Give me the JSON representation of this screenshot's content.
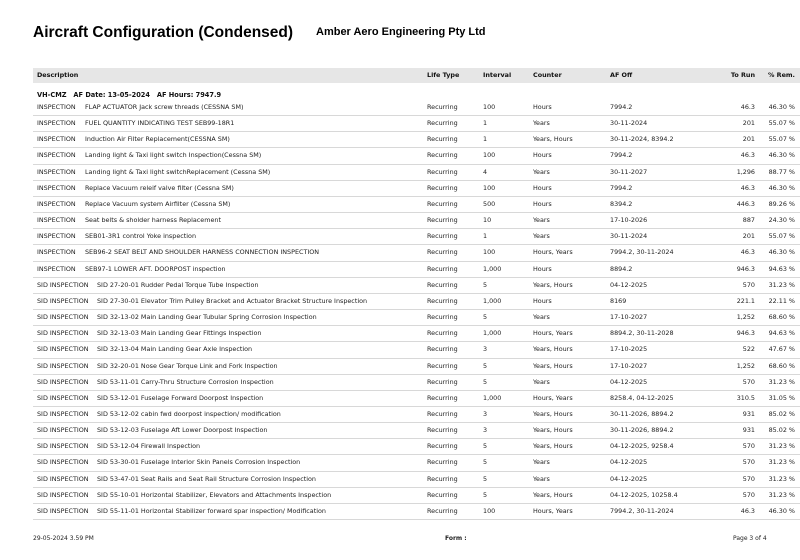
{
  "header": {
    "title": "Aircraft Configuration (Condensed)",
    "company": "Amber Aero Engineering Pty Ltd"
  },
  "columns": {
    "description": "Description",
    "life_type": "Life Type",
    "interval": "Interval",
    "counter": "Counter",
    "af_off": "AF Off",
    "to_run": "To Run",
    "pct_rem": "% Rem."
  },
  "group": {
    "label": "VH-CMZ   AF Date: 13-05-2024   AF Hours: 7947.9"
  },
  "rows": [
    {
      "type": "INSPECTION",
      "desc": "FLAP ACTUATOR Jack screw threads (CESSNA SM)",
      "life": "Recurring",
      "interval": "100",
      "counter": "Hours",
      "af_off": "7994.2",
      "to_run": "46.3",
      "rem": "46.30 %"
    },
    {
      "type": "INSPECTION",
      "desc": "FUEL QUANTITY INDICATING TEST SEB99-18R1",
      "life": "Recurring",
      "interval": "1",
      "counter": "Years",
      "af_off": "30-11-2024",
      "to_run": "201",
      "rem": "55.07 %"
    },
    {
      "type": "INSPECTION",
      "desc": "Induction Air Filter Replacement(CESSNA SM)",
      "life": "Recurring",
      "interval": "1",
      "counter": "Years, Hours",
      "af_off": "30-11-2024, 8394.2",
      "to_run": "201",
      "rem": "55.07 %"
    },
    {
      "type": "INSPECTION",
      "desc": "Landing light & Taxi light switch Inspection(Cessna SM)",
      "life": "Recurring",
      "interval": "100",
      "counter": "Hours",
      "af_off": "7994.2",
      "to_run": "46.3",
      "rem": "46.30 %"
    },
    {
      "type": "INSPECTION",
      "desc": "Landing light & Taxi light switchReplacement (Cessna SM)",
      "life": "Recurring",
      "interval": "4",
      "counter": "Years",
      "af_off": "30-11-2027",
      "to_run": "1,296",
      "rem": "88.77 %"
    },
    {
      "type": "INSPECTION",
      "desc": "Replace Vacuum releif valve filter (Cessna SM)",
      "life": "Recurring",
      "interval": "100",
      "counter": "Hours",
      "af_off": "7994.2",
      "to_run": "46.3",
      "rem": "46.30 %"
    },
    {
      "type": "INSPECTION",
      "desc": "Replace Vacuum system  Airfilter (Cessna SM)",
      "life": "Recurring",
      "interval": "500",
      "counter": "Hours",
      "af_off": "8394.2",
      "to_run": "446.3",
      "rem": "89.26 %"
    },
    {
      "type": "INSPECTION",
      "desc": "Seat belts & sholder harness Replacement",
      "life": "Recurring",
      "interval": "10",
      "counter": "Years",
      "af_off": "17-10-2026",
      "to_run": "887",
      "rem": "24.30 %"
    },
    {
      "type": "INSPECTION",
      "desc": "SEB01-3R1 control Yoke inspection",
      "life": "Recurring",
      "interval": "1",
      "counter": "Years",
      "af_off": "30-11-2024",
      "to_run": "201",
      "rem": "55.07 %"
    },
    {
      "type": "INSPECTION",
      "desc": "SEB96-2 SEAT BELT AND SHOULDER HARNESS CONNECTION INSPECTION",
      "life": "Recurring",
      "interval": "100",
      "counter": "Hours, Years",
      "af_off": "7994.2, 30-11-2024",
      "to_run": "46.3",
      "rem": "46.30 %"
    },
    {
      "type": "INSPECTION",
      "desc": "SEB97-1 LOWER AFT. DOORPOST inspection",
      "life": "Recurring",
      "interval": "1,000",
      "counter": "Hours",
      "af_off": "8894.2",
      "to_run": "946.3",
      "rem": "94.63 %"
    },
    {
      "type": "SID INSPECTION",
      "desc": "SID 27-20-01 Rudder Pedal Torque Tube Inspection",
      "life": "Recurring",
      "interval": "5",
      "counter": "Years, Hours",
      "af_off": "04-12-2025",
      "to_run": "570",
      "rem": "31.23 %"
    },
    {
      "type": "SID INSPECTION",
      "desc": "SID 27-30-01 Elevator Trim Pulley Bracket and Actuator Bracket Structure Inspection",
      "life": "Recurring",
      "interval": "1,000",
      "counter": "Hours",
      "af_off": "8169",
      "to_run": "221.1",
      "rem": "22.11 %"
    },
    {
      "type": "SID INSPECTION",
      "desc": "SID 32-13-02 Main Landing Gear Tubular Spring Corrosion Inspection",
      "life": "Recurring",
      "interval": "5",
      "counter": "Years",
      "af_off": "17-10-2027",
      "to_run": "1,252",
      "rem": "68.60 %"
    },
    {
      "type": "SID INSPECTION",
      "desc": "SID 32-13-03 Main Landing Gear Fittings Inspection",
      "life": "Recurring",
      "interval": "1,000",
      "counter": "Hours, Years",
      "af_off": "8894.2, 30-11-2028",
      "to_run": "946.3",
      "rem": "94.63 %"
    },
    {
      "type": "SID INSPECTION",
      "desc": "SID 32-13-04 Main Landing Gear Axle Inspection",
      "life": "Recurring",
      "interval": "3",
      "counter": "Years, Hours",
      "af_off": "17-10-2025",
      "to_run": "522",
      "rem": "47.67 %"
    },
    {
      "type": "SID INSPECTION",
      "desc": "SID 32-20-01 Nose Gear Torque Link and Fork Inspection",
      "life": "Recurring",
      "interval": "5",
      "counter": "Years, Hours",
      "af_off": "17-10-2027",
      "to_run": "1,252",
      "rem": "68.60 %"
    },
    {
      "type": "SID INSPECTION",
      "desc": "SID 53-11-01 Carry-Thru Structure Corrosion Inspection",
      "life": "Recurring",
      "interval": "5",
      "counter": "Years",
      "af_off": "04-12-2025",
      "to_run": "570",
      "rem": "31.23 %"
    },
    {
      "type": "SID INSPECTION",
      "desc": "SID 53-12-01 Fuselage Forward Doorpost Inspection",
      "life": "Recurring",
      "interval": "1,000",
      "counter": "Hours, Years",
      "af_off": "8258.4, 04-12-2025",
      "to_run": "310.5",
      "rem": "31.05 %"
    },
    {
      "type": "SID INSPECTION",
      "desc": "SID 53-12-02 cabin fwd doorpost inspection/ modification",
      "life": "Recurring",
      "interval": "3",
      "counter": "Years, Hours",
      "af_off": "30-11-2026, 8894.2",
      "to_run": "931",
      "rem": "85.02 %"
    },
    {
      "type": "SID INSPECTION",
      "desc": "SID 53-12-03 Fuselage Aft Lower Doorpost Inspection",
      "life": "Recurring",
      "interval": "3",
      "counter": "Years, Hours",
      "af_off": "30-11-2026, 8894.2",
      "to_run": "931",
      "rem": "85.02 %"
    },
    {
      "type": "SID INSPECTION",
      "desc": "SID 53-12-04 Firewall Inspection",
      "life": "Recurring",
      "interval": "5",
      "counter": "Years, Hours",
      "af_off": "04-12-2025, 9258.4",
      "to_run": "570",
      "rem": "31.23 %"
    },
    {
      "type": "SID INSPECTION",
      "desc": "SID 53-30-01 Fuselage Interior Skin Panels Corrosion Inspection",
      "life": "Recurring",
      "interval": "5",
      "counter": "Years",
      "af_off": "04-12-2025",
      "to_run": "570",
      "rem": "31.23 %"
    },
    {
      "type": "SID INSPECTION",
      "desc": "SID 53-47-01 Seat Rails and Seat Rail Structure Corrosion Inspection",
      "life": "Recurring",
      "interval": "5",
      "counter": "Years",
      "af_off": "04-12-2025",
      "to_run": "570",
      "rem": "31.23 %"
    },
    {
      "type": "SID INSPECTION",
      "desc": "SID 55-10-01 Horizontal Stabilizer, Elevators and Attachments Inspection",
      "life": "Recurring",
      "interval": "5",
      "counter": "Years, Hours",
      "af_off": "04-12-2025, 10258.4",
      "to_run": "570",
      "rem": "31.23 %"
    },
    {
      "type": "SID INSPECTION",
      "desc": "SID 55-11-01 Horizontal Stabilizer forward spar inspection/ Modification",
      "life": "Recurring",
      "interval": "100",
      "counter": "Hours, Years",
      "af_off": "7994.2, 30-11-2024",
      "to_run": "46.3",
      "rem": "46.30 %"
    }
  ],
  "footer": {
    "timestamp": "29-05-2024 3.59 PM",
    "form": "Form :",
    "page": "Page 3 of 4"
  }
}
